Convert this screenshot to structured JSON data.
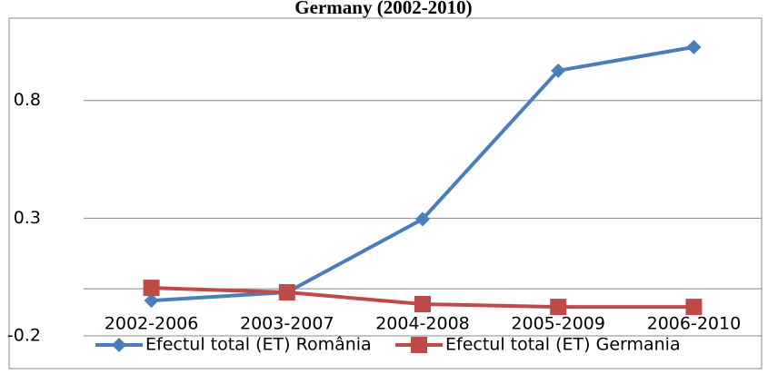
{
  "chart_data": {
    "type": "line",
    "title": "Germany (2002-2010)",
    "categories": [
      "2002-2006",
      "2003-2007",
      "2004-2008",
      "2005-2009",
      "2006-2010"
    ],
    "series": [
      {
        "name": "Efectul total (ET) România",
        "color": "#4a7ebb",
        "marker": "diamond",
        "values": [
          -0.05,
          -0.015,
          0.296,
          0.927,
          1.027
        ]
      },
      {
        "name": "Efectul total (ET) Germania",
        "color": "#be4b48",
        "marker": "square",
        "values": [
          0.004,
          -0.015,
          -0.065,
          -0.077,
          -0.077
        ]
      }
    ],
    "ylim": [
      -0.2,
      1.15
    ],
    "yticks": [
      -0.2,
      0.3,
      0.8
    ],
    "grid": true,
    "legend": "bottom"
  }
}
